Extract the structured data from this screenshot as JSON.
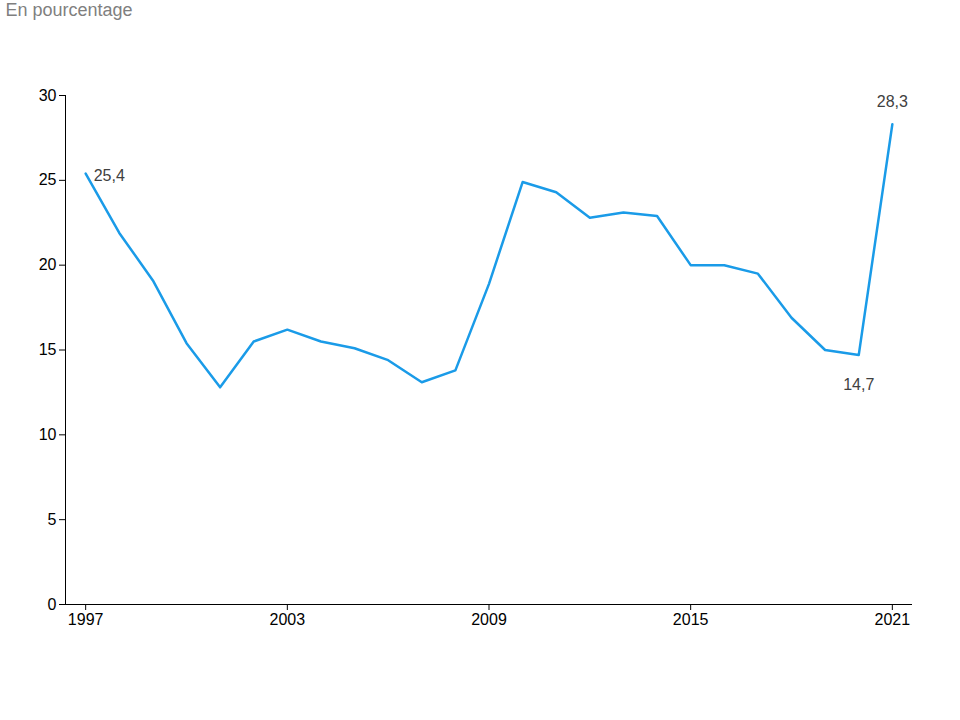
{
  "chart_data": {
    "type": "line",
    "y_label": "En pourcentage",
    "x": [
      1997,
      1998,
      1999,
      2000,
      2001,
      2002,
      2003,
      2004,
      2005,
      2006,
      2007,
      2008,
      2009,
      2010,
      2011,
      2012,
      2013,
      2014,
      2015,
      2016,
      2017,
      2018,
      2019,
      2020,
      2021
    ],
    "values": [
      25.4,
      21.9,
      19.1,
      15.4,
      12.8,
      15.5,
      16.2,
      15.5,
      15.1,
      14.4,
      13.1,
      13.8,
      18.9,
      24.9,
      24.3,
      22.8,
      23.1,
      22.9,
      20.0,
      20.0,
      19.5,
      16.9,
      15.0,
      14.7,
      28.3
    ],
    "color": "#1a9be8",
    "xlim": [
      1996.4,
      2021.6
    ],
    "xticks": [
      1997,
      2003,
      2009,
      2015,
      2021
    ],
    "ylim": [
      0,
      30
    ],
    "yticks": [
      0,
      5,
      10,
      15,
      20,
      25,
      30
    ],
    "grid": false,
    "annotations": [
      {
        "x": 1997,
        "value": 25.4,
        "label": "25,4"
      },
      {
        "x": 2020,
        "value": 14.7,
        "label": "14,7"
      },
      {
        "x": 2021,
        "value": 28.3,
        "label": "28,3"
      }
    ]
  }
}
